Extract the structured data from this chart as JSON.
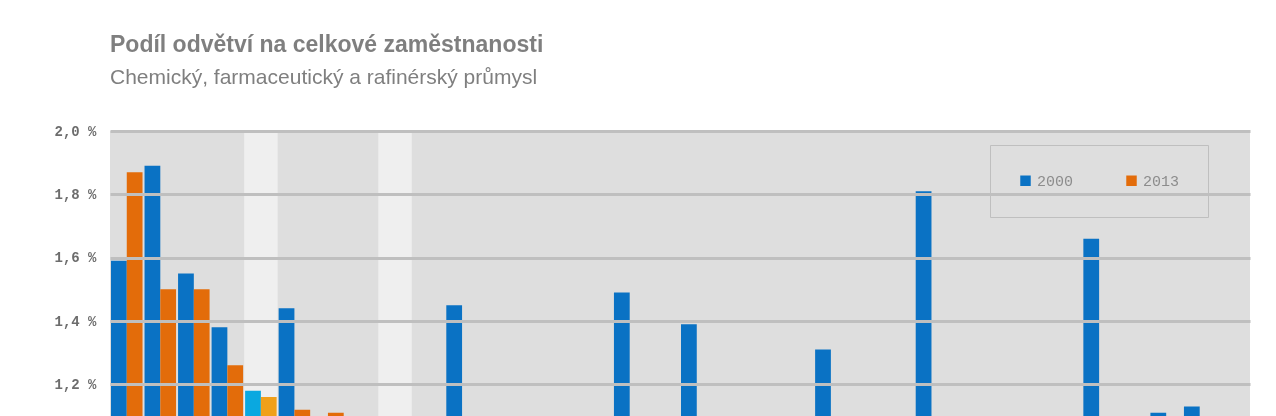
{
  "chart_data": {
    "type": "bar",
    "title": "Podíl odvětví na celkové zaměstnanosti",
    "subtitle": "Chemický, farmaceutický a rafinérský průmysl",
    "categories": [
      null,
      null,
      null,
      null,
      null,
      null,
      null,
      null,
      null,
      null,
      null,
      null,
      null,
      null,
      null,
      null,
      null,
      null,
      null,
      null,
      null,
      null,
      null,
      null,
      null,
      null,
      null,
      null,
      null,
      null,
      null,
      null,
      null,
      null
    ],
    "series": [
      {
        "name": "2000",
        "color": "#0a72c4",
        "colors": [
          "#0a72c4",
          "#0a72c4",
          "#0a72c4",
          "#0a72c4",
          "#0aa8e0",
          "#0a72c4",
          "#0a72c4",
          "#0a72c4",
          "#0a72c4",
          "#0a72c4",
          "#0a72c4",
          "#0a72c4",
          "#0a72c4",
          "#0a72c4",
          "#0a72c4",
          "#0a72c4",
          "#0a72c4",
          "#0a72c4",
          "#0a72c4",
          "#0a72c4",
          "#0a72c4",
          "#0a72c4",
          "#0a72c4",
          "#0a72c4",
          "#0a72c4",
          "#0a72c4",
          "#0a72c4",
          "#0a72c4",
          "#0a72c4",
          "#0a72c4",
          "#0a72c4",
          "#0a72c4",
          "#0a72c4",
          "#0a72c4"
        ],
        "values": [
          1.59,
          1.89,
          1.55,
          1.38,
          1.18,
          1.44,
          null,
          null,
          null,
          null,
          1.45,
          null,
          null,
          null,
          null,
          1.49,
          null,
          1.39,
          null,
          null,
          null,
          1.31,
          null,
          null,
          1.81,
          null,
          null,
          null,
          null,
          1.66,
          null,
          1.11,
          1.13,
          null
        ]
      },
      {
        "name": "2013",
        "color": "#e36c0a",
        "colors": [
          "#e36c0a",
          "#e36c0a",
          "#e36c0a",
          "#e36c0a",
          "#f0a01a",
          "#e36c0a",
          "#e36c0a",
          "#e36c0a",
          "#e36c0a",
          "#e36c0a",
          "#e36c0a",
          "#e36c0a",
          "#e36c0a",
          "#e36c0a",
          "#e36c0a",
          "#e36c0a",
          "#e36c0a",
          "#e36c0a",
          "#e36c0a",
          "#e36c0a",
          "#e36c0a",
          "#e36c0a",
          "#e36c0a",
          "#e36c0a",
          "#e36c0a",
          "#e36c0a",
          "#e36c0a",
          "#e36c0a",
          "#e36c0a",
          "#e36c0a",
          "#e36c0a",
          "#e36c0a",
          "#e36c0a",
          "#e36c0a"
        ],
        "values": [
          1.87,
          1.5,
          1.5,
          1.26,
          1.16,
          1.12,
          1.11,
          null,
          null,
          null,
          null,
          null,
          null,
          null,
          null,
          null,
          null,
          null,
          null,
          null,
          null,
          null,
          null,
          null,
          null,
          null,
          null,
          null,
          null,
          null,
          null,
          null,
          null,
          null
        ]
      }
    ],
    "ylim": [
      1.1,
      2.0
    ],
    "yticks": [
      {
        "value": 1.2,
        "label": "1,2 %"
      },
      {
        "value": 1.4,
        "label": "1,4 %"
      },
      {
        "value": 1.6,
        "label": "1,6 %"
      },
      {
        "value": 1.8,
        "label": "1,8 %"
      },
      {
        "value": 2.0,
        "label": "2,0 %"
      }
    ],
    "grid": "y",
    "legend": "top right",
    "tick_labels": "y"
  }
}
